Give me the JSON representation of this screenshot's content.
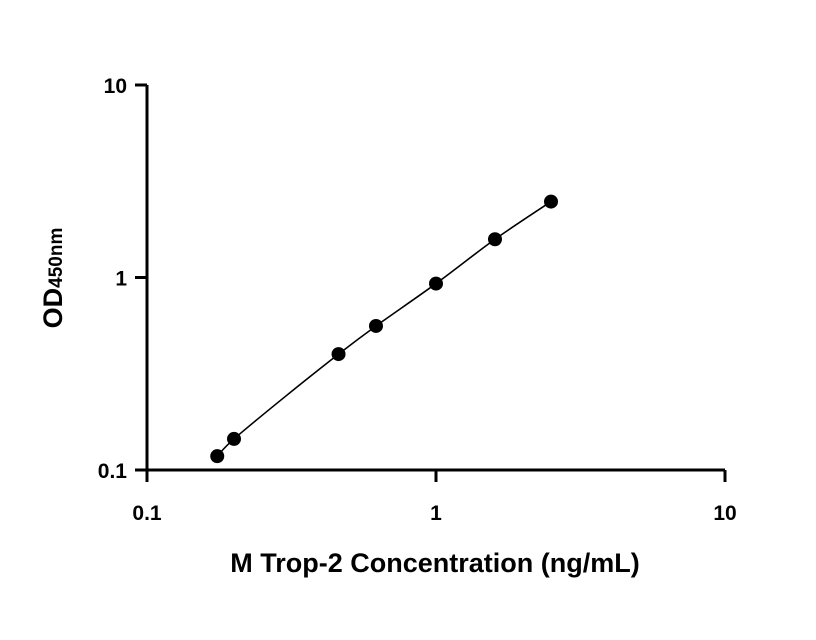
{
  "chart_data": {
    "type": "scatter",
    "xlabel": "M Trop-2 Concentration (ng/mL)",
    "ylabel": {
      "main": "OD",
      "subscript": "450nm"
    },
    "x_scale": "log",
    "y_scale": "log",
    "xlim": [
      0.1,
      10
    ],
    "ylim": [
      0.1,
      10
    ],
    "x_ticks": [
      "0.1",
      "1",
      "10"
    ],
    "y_ticks": [
      "0.1",
      "1",
      "10"
    ],
    "grid": false,
    "legend": "none",
    "colors": {
      "marker": "#000000",
      "axis": "#000000",
      "curve": "#000000"
    },
    "series": [
      {
        "x": [
          0.175,
          0.2,
          0.46,
          0.62,
          1.0,
          1.6,
          2.5
        ],
        "y": [
          0.118,
          0.145,
          0.4,
          0.56,
          0.93,
          1.58,
          2.48
        ]
      }
    ],
    "fit_curve": {
      "x": [
        0.175,
        0.2,
        0.3,
        0.46,
        0.62,
        1.0,
        1.6,
        2.5
      ],
      "y": [
        0.118,
        0.145,
        0.24,
        0.4,
        0.56,
        0.93,
        1.58,
        2.48
      ]
    }
  }
}
